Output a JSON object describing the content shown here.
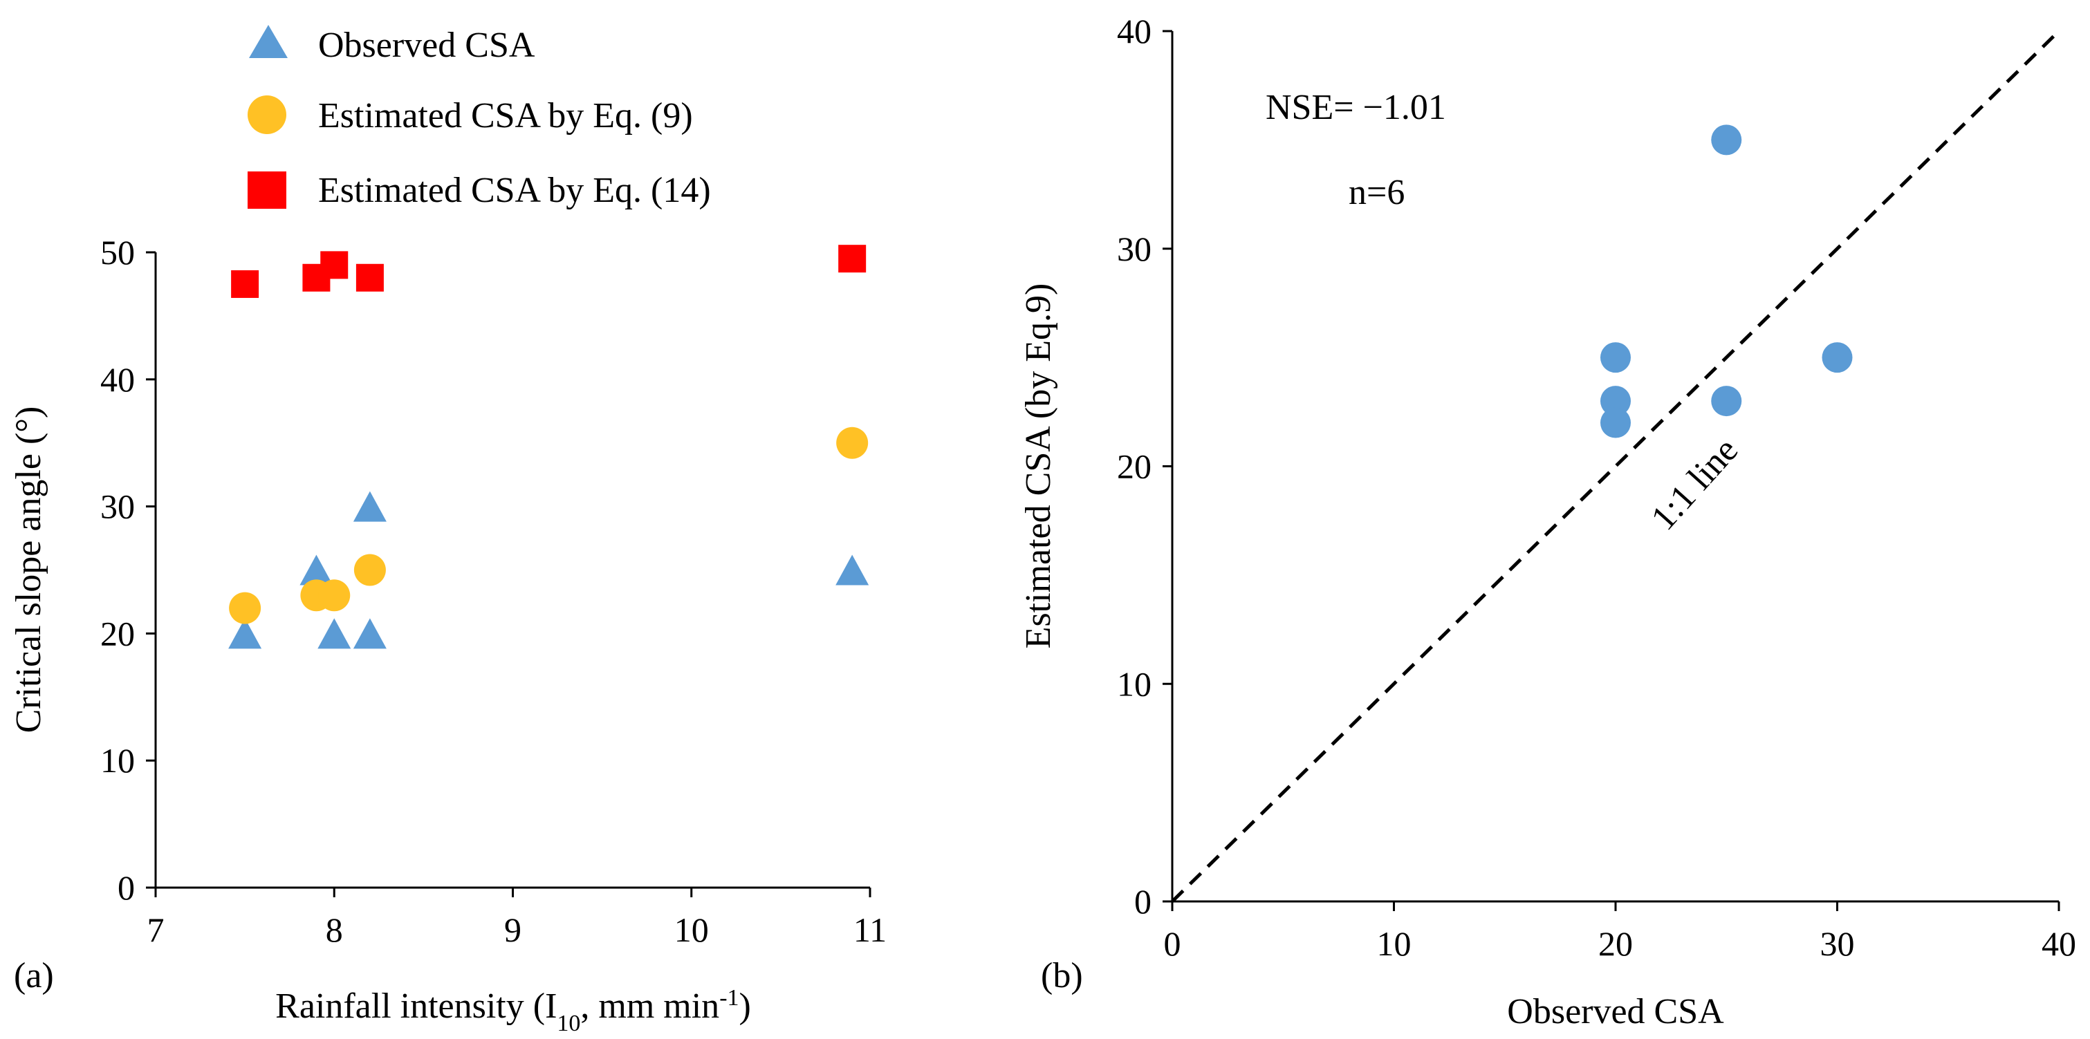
{
  "chart_data": [
    {
      "panel": "(a)",
      "type": "scatter",
      "xlabel": "Rainfall intensity (I10, mm min-1)",
      "xlabel_parts": {
        "main": "Rainfall intensity (I",
        "sub": "10",
        "mid": ", mm min",
        "sup": "-1",
        "end": ")"
      },
      "ylabel": "Critical slope angle (°)",
      "xlim": [
        7,
        11
      ],
      "ylim": [
        0,
        50
      ],
      "xticks": [
        "7",
        "8",
        "9",
        "10",
        "11"
      ],
      "yticks": [
        "0",
        "10",
        "20",
        "30",
        "40",
        "50"
      ],
      "legend_position": "top-left",
      "series": [
        {
          "name": "Observed CSA",
          "marker": "triangle",
          "color": "#5b9bd5",
          "points": [
            [
              7.5,
              20
            ],
            [
              7.9,
              25
            ],
            [
              8.0,
              20
            ],
            [
              8.2,
              20
            ],
            [
              8.2,
              30
            ],
            [
              10.9,
              25
            ]
          ]
        },
        {
          "name": "Estimated CSA by Eq. (9)",
          "marker": "circle",
          "color": "#ffc125",
          "points": [
            [
              7.5,
              22
            ],
            [
              7.9,
              23
            ],
            [
              8.0,
              23
            ],
            [
              8.2,
              25
            ],
            [
              10.9,
              35
            ]
          ]
        },
        {
          "name": "Estimated CSA by Eq. (14)",
          "marker": "square",
          "color": "#ff0000",
          "points": [
            [
              7.5,
              47.5
            ],
            [
              7.9,
              48
            ],
            [
              8.0,
              49
            ],
            [
              8.2,
              48
            ],
            [
              10.9,
              49.5
            ]
          ]
        }
      ]
    },
    {
      "panel": "(b)",
      "type": "scatter",
      "xlabel": "Observed CSA",
      "ylabel": "Estimated CSA (by Eq.9)",
      "xlim": [
        0,
        40
      ],
      "ylim": [
        0,
        40
      ],
      "xticks": [
        "0",
        "10",
        "20",
        "30",
        "40"
      ],
      "yticks": [
        "0",
        "10",
        "20",
        "30",
        "40"
      ],
      "annotations": [
        "NSE= −1.01",
        "n=6",
        "1:1 line"
      ],
      "line_label": "1:1 line",
      "series": [
        {
          "marker": "circle",
          "color": "#5b9bd5",
          "points": [
            [
              20,
              25
            ],
            [
              20,
              23
            ],
            [
              20,
              22
            ],
            [
              25,
              35
            ],
            [
              25,
              23
            ],
            [
              30,
              25
            ]
          ]
        }
      ]
    }
  ]
}
